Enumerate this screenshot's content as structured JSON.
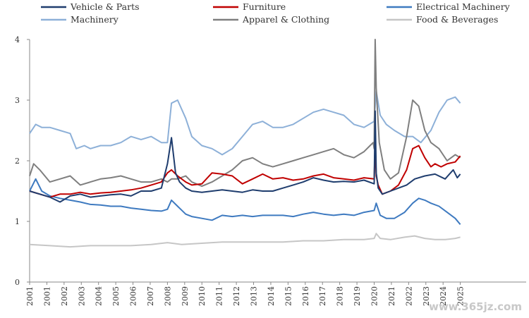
{
  "watermark": "www.365jz.com",
  "chart_data": {
    "type": "line",
    "title": "",
    "xlabel": "",
    "ylabel": "",
    "ylim": [
      0,
      4
    ],
    "yticks": [
      0,
      1,
      2,
      3,
      4
    ],
    "xlim": [
      2001.0,
      2025.5
    ],
    "grid": false,
    "legend_position": "top",
    "x_ticks": [
      {
        "x": 2001.0,
        "label": "2001"
      },
      {
        "x": 2001.85,
        "label": "2001"
      },
      {
        "x": 2002.7,
        "label": "2002"
      },
      {
        "x": 2003.55,
        "label": "2003"
      },
      {
        "x": 2004.4,
        "label": "2004"
      },
      {
        "x": 2005.25,
        "label": "2005"
      },
      {
        "x": 2006.1,
        "label": "2006"
      },
      {
        "x": 2006.95,
        "label": "2007"
      },
      {
        "x": 2007.8,
        "label": "2008"
      },
      {
        "x": 2008.65,
        "label": "2009"
      },
      {
        "x": 2009.5,
        "label": "2010"
      },
      {
        "x": 2010.35,
        "label": "2011"
      },
      {
        "x": 2011.2,
        "label": "2012"
      },
      {
        "x": 2012.05,
        "label": "2013"
      },
      {
        "x": 2012.9,
        "label": "2014"
      },
      {
        "x": 2013.75,
        "label": "2015"
      },
      {
        "x": 2014.6,
        "label": "2016"
      },
      {
        "x": 2015.45,
        "label": "2017"
      },
      {
        "x": 2016.3,
        "label": "2018"
      },
      {
        "x": 2017.15,
        "label": "2019"
      },
      {
        "x": 2018.0,
        "label": "2020"
      },
      {
        "x": 2018.85,
        "label": "2021"
      },
      {
        "x": 2019.7,
        "label": "2022"
      },
      {
        "x": 2020.55,
        "label": "2023"
      },
      {
        "x": 2021.4,
        "label": "2024"
      },
      {
        "x": 2022.25,
        "label": "2025"
      }
    ],
    "series": [
      {
        "name": "Vehicle & Parts",
        "color": "#1f3d6e",
        "x": [
          2001.0,
          2001.5,
          2002.0,
          2002.5,
          2003.0,
          2003.5,
          2004.0,
          2004.5,
          2005.0,
          2005.5,
          2006.0,
          2006.5,
          2007.0,
          2007.5,
          2007.8,
          2008.0,
          2008.2,
          2008.4,
          2008.7,
          2009.0,
          2009.5,
          2010.0,
          2010.5,
          2011.0,
          2011.5,
          2012.0,
          2012.5,
          2013.0,
          2013.5,
          2014.0,
          2014.5,
          2015.0,
          2015.5,
          2016.0,
          2016.5,
          2017.0,
          2017.5,
          2018.0,
          2018.05,
          2018.1,
          2018.2,
          2018.4,
          2018.8,
          2019.2,
          2019.6,
          2020.0,
          2020.5,
          2021.0,
          2021.5,
          2021.9,
          2022.1,
          2022.25
        ],
        "values": [
          1.5,
          1.45,
          1.4,
          1.32,
          1.42,
          1.45,
          1.4,
          1.42,
          1.44,
          1.45,
          1.42,
          1.5,
          1.5,
          1.55,
          1.95,
          2.38,
          1.8,
          1.65,
          1.55,
          1.5,
          1.48,
          1.5,
          1.52,
          1.5,
          1.48,
          1.52,
          1.5,
          1.5,
          1.55,
          1.6,
          1.65,
          1.72,
          1.68,
          1.65,
          1.66,
          1.65,
          1.68,
          1.62,
          2.82,
          1.8,
          1.55,
          1.45,
          1.5,
          1.55,
          1.6,
          1.7,
          1.75,
          1.78,
          1.7,
          1.85,
          1.72,
          1.78
        ]
      },
      {
        "name": "Furniture",
        "color": "#c00000",
        "x": [
          2001.0,
          2001.5,
          2002.0,
          2002.5,
          2003.0,
          2003.5,
          2004.0,
          2004.5,
          2005.0,
          2005.5,
          2006.0,
          2006.5,
          2007.0,
          2007.5,
          2007.8,
          2008.0,
          2008.3,
          2008.7,
          2009.0,
          2009.5,
          2010.0,
          2010.5,
          2011.0,
          2011.5,
          2012.0,
          2012.5,
          2013.0,
          2013.5,
          2014.0,
          2014.5,
          2015.0,
          2015.5,
          2016.0,
          2016.5,
          2017.0,
          2017.5,
          2018.0,
          2018.05,
          2018.1,
          2018.2,
          2018.4,
          2018.8,
          2019.2,
          2019.6,
          2019.9,
          2020.2,
          2020.5,
          2020.8,
          2021.0,
          2021.3,
          2021.6,
          2022.0,
          2022.25
        ],
        "values": [
          1.5,
          1.45,
          1.4,
          1.45,
          1.45,
          1.48,
          1.45,
          1.47,
          1.48,
          1.5,
          1.52,
          1.55,
          1.6,
          1.65,
          1.8,
          1.85,
          1.75,
          1.65,
          1.6,
          1.62,
          1.8,
          1.78,
          1.75,
          1.62,
          1.7,
          1.78,
          1.7,
          1.72,
          1.68,
          1.7,
          1.75,
          1.78,
          1.72,
          1.7,
          1.68,
          1.72,
          1.7,
          2.3,
          1.75,
          1.6,
          1.45,
          1.5,
          1.6,
          1.85,
          2.2,
          2.25,
          2.05,
          1.9,
          1.95,
          1.9,
          1.95,
          1.98,
          2.08
        ]
      },
      {
        "name": "Electrical Machinery",
        "color": "#3e7ac0",
        "x": [
          2001.0,
          2001.3,
          2001.6,
          2002.0,
          2002.5,
          2003.0,
          2003.5,
          2004.0,
          2004.5,
          2005.0,
          2005.5,
          2006.0,
          2006.5,
          2007.0,
          2007.5,
          2007.8,
          2008.0,
          2008.3,
          2008.7,
          2009.0,
          2009.5,
          2010.0,
          2010.5,
          2011.0,
          2011.5,
          2012.0,
          2012.5,
          2013.0,
          2013.5,
          2014.0,
          2014.5,
          2015.0,
          2015.5,
          2016.0,
          2016.5,
          2017.0,
          2017.5,
          2018.0,
          2018.1,
          2018.3,
          2018.6,
          2019.0,
          2019.5,
          2019.9,
          2020.2,
          2020.5,
          2020.8,
          2021.2,
          2021.6,
          2022.0,
          2022.25
        ],
        "values": [
          1.5,
          1.7,
          1.5,
          1.42,
          1.38,
          1.35,
          1.32,
          1.28,
          1.27,
          1.25,
          1.25,
          1.22,
          1.2,
          1.18,
          1.17,
          1.2,
          1.35,
          1.25,
          1.12,
          1.08,
          1.05,
          1.02,
          1.1,
          1.08,
          1.1,
          1.08,
          1.1,
          1.1,
          1.1,
          1.08,
          1.12,
          1.15,
          1.12,
          1.1,
          1.12,
          1.1,
          1.15,
          1.18,
          1.3,
          1.1,
          1.05,
          1.05,
          1.15,
          1.3,
          1.38,
          1.35,
          1.3,
          1.25,
          1.15,
          1.05,
          0.95
        ]
      },
      {
        "name": "Machinery",
        "color": "#8db0d8",
        "x": [
          2001.0,
          2001.3,
          2001.6,
          2002.0,
          2002.5,
          2003.0,
          2003.3,
          2003.7,
          2004.0,
          2004.5,
          2005.0,
          2005.5,
          2006.0,
          2006.5,
          2007.0,
          2007.5,
          2007.8,
          2008.0,
          2008.3,
          2008.7,
          2009.0,
          2009.5,
          2010.0,
          2010.5,
          2011.0,
          2011.5,
          2012.0,
          2012.5,
          2013.0,
          2013.5,
          2014.0,
          2014.5,
          2015.0,
          2015.5,
          2016.0,
          2016.5,
          2017.0,
          2017.5,
          2018.0,
          2018.1,
          2018.3,
          2018.6,
          2019.0,
          2019.5,
          2019.9,
          2020.3,
          2020.8,
          2021.2,
          2021.6,
          2022.0,
          2022.25
        ],
        "values": [
          2.45,
          2.6,
          2.55,
          2.55,
          2.5,
          2.45,
          2.2,
          2.25,
          2.2,
          2.25,
          2.25,
          2.3,
          2.4,
          2.35,
          2.4,
          2.3,
          2.3,
          2.95,
          3.0,
          2.7,
          2.4,
          2.25,
          2.2,
          2.1,
          2.2,
          2.4,
          2.6,
          2.65,
          2.55,
          2.55,
          2.6,
          2.7,
          2.8,
          2.85,
          2.8,
          2.75,
          2.6,
          2.55,
          2.65,
          3.15,
          2.75,
          2.6,
          2.5,
          2.4,
          2.4,
          2.3,
          2.5,
          2.8,
          3.0,
          3.05,
          2.95
        ]
      },
      {
        "name": "Apparel & Clothing",
        "color": "#7f7f7f",
        "x": [
          2001.0,
          2001.2,
          2001.5,
          2002.0,
          2002.5,
          2003.0,
          2003.5,
          2004.0,
          2004.5,
          2005.0,
          2005.5,
          2006.0,
          2006.5,
          2007.0,
          2007.5,
          2007.8,
          2008.0,
          2008.3,
          2008.7,
          2009.0,
          2009.5,
          2010.0,
          2010.5,
          2011.0,
          2011.5,
          2012.0,
          2012.5,
          2013.0,
          2013.5,
          2014.0,
          2014.5,
          2015.0,
          2015.5,
          2016.0,
          2016.5,
          2017.0,
          2017.5,
          2017.8,
          2017.95,
          2018.0,
          2018.05,
          2018.1,
          2018.25,
          2018.5,
          2018.8,
          2019.2,
          2019.6,
          2019.9,
          2020.2,
          2020.5,
          2020.8,
          2021.2,
          2021.6,
          2022.0,
          2022.25
        ],
        "values": [
          1.75,
          1.95,
          1.85,
          1.65,
          1.7,
          1.75,
          1.6,
          1.65,
          1.7,
          1.72,
          1.75,
          1.7,
          1.65,
          1.65,
          1.7,
          1.65,
          1.7,
          1.7,
          1.75,
          1.65,
          1.58,
          1.65,
          1.75,
          1.85,
          2.0,
          2.05,
          1.95,
          1.9,
          1.95,
          2.0,
          2.05,
          2.1,
          2.15,
          2.2,
          2.1,
          2.05,
          2.15,
          2.25,
          2.3,
          2.2,
          4.0,
          3.2,
          2.3,
          1.85,
          1.7,
          1.8,
          2.4,
          3.0,
          2.9,
          2.5,
          2.3,
          2.2,
          2.0,
          2.1,
          2.05
        ]
      },
      {
        "name": "Food & Beverages",
        "color": "#c6c6c6",
        "x": [
          2001.0,
          2002.0,
          2003.0,
          2004.0,
          2005.0,
          2006.0,
          2007.0,
          2007.8,
          2008.5,
          2009.5,
          2010.5,
          2011.5,
          2012.5,
          2013.5,
          2014.5,
          2015.5,
          2016.5,
          2017.5,
          2018.0,
          2018.1,
          2018.3,
          2018.8,
          2019.5,
          2020.0,
          2020.5,
          2021.0,
          2021.5,
          2022.0,
          2022.25
        ],
        "values": [
          0.62,
          0.6,
          0.58,
          0.6,
          0.6,
          0.6,
          0.62,
          0.65,
          0.62,
          0.64,
          0.66,
          0.66,
          0.66,
          0.66,
          0.68,
          0.68,
          0.7,
          0.7,
          0.72,
          0.8,
          0.72,
          0.7,
          0.74,
          0.76,
          0.72,
          0.7,
          0.7,
          0.72,
          0.74
        ]
      }
    ]
  }
}
